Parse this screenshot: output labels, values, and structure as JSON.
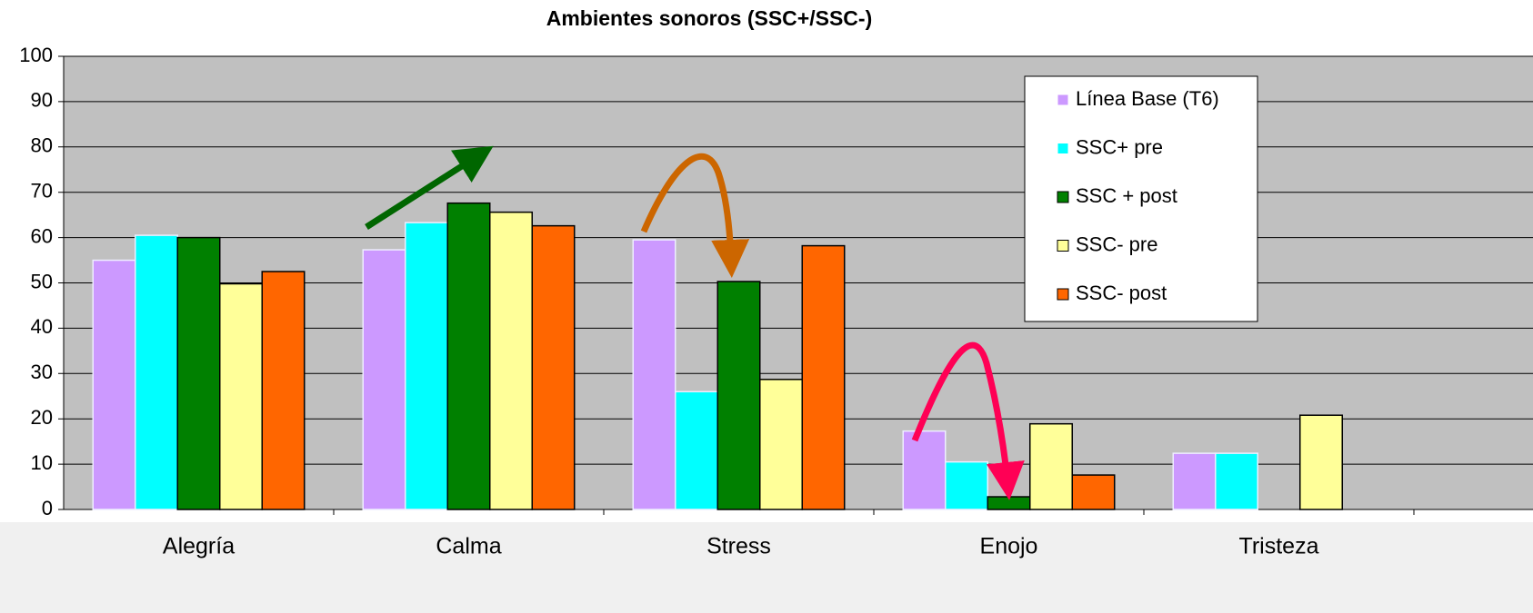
{
  "chart_data": {
    "type": "bar",
    "title": "Ambientes sonoros  (SSC+/SSC-)",
    "categories": [
      "Alegría",
      "Calma",
      "Stress",
      "Enojo",
      "Tristeza"
    ],
    "series": [
      {
        "name": "Línea Base (T6)",
        "color": "#cc99ff",
        "values": [
          55,
          57.3,
          59.5,
          17.3,
          12.4
        ]
      },
      {
        "name": "SSC+ pre",
        "color": "#00ffff",
        "values": [
          60.5,
          63.3,
          26,
          10.5,
          12.4
        ]
      },
      {
        "name": "SSC + post",
        "color": "#008000",
        "values": [
          60,
          67.6,
          50.3,
          2.8,
          null
        ]
      },
      {
        "name": "SSC- pre",
        "color": "#ffff99",
        "values": [
          49.8,
          65.6,
          28.7,
          18.9,
          20.8
        ]
      },
      {
        "name": "SSC- post",
        "color": "#ff6600",
        "values": [
          52.5,
          62.6,
          58.2,
          7.6,
          null
        ]
      }
    ],
    "ylim": [
      0,
      100
    ],
    "yticks": [
      0,
      10,
      20,
      30,
      40,
      50,
      60,
      70,
      80,
      90,
      100
    ],
    "grid": true
  }
}
